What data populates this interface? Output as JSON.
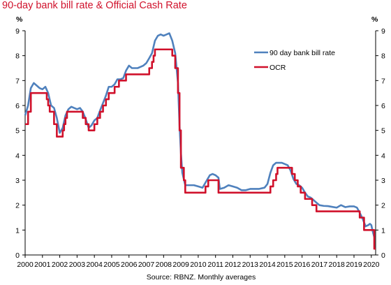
{
  "title": "90-day bank bill rate & Official Cash Rate",
  "chart_data": {
    "type": "line",
    "title": "90-day bank bill rate & Official Cash Rate",
    "y_unit_left": "%",
    "y_unit_right": "%",
    "ylim": [
      0,
      9
    ],
    "y_ticks": [
      "0",
      "1",
      "2",
      "3",
      "4",
      "5",
      "6",
      "7",
      "8",
      "9"
    ],
    "xlim": [
      2000,
      2020.25
    ],
    "x_ticks": [
      "2000",
      "2001",
      "2002",
      "2003",
      "2004",
      "2005",
      "2006",
      "2007",
      "2008",
      "2009",
      "2010",
      "2011",
      "2012",
      "2013",
      "2014",
      "2015",
      "2016",
      "2017",
      "2018",
      "2019",
      "2020"
    ],
    "grid": false,
    "legend_position": "top-right",
    "source": "Source: RBNZ. Monthly averages",
    "series": [
      {
        "name": "90 day bank bill rate",
        "color": "#4f81bd",
        "points": [
          [
            2000.0,
            5.6
          ],
          [
            2000.17,
            6.0
          ],
          [
            2000.33,
            6.7
          ],
          [
            2000.5,
            6.9
          ],
          [
            2000.67,
            6.8
          ],
          [
            2000.83,
            6.7
          ],
          [
            2001.0,
            6.65
          ],
          [
            2001.17,
            6.75
          ],
          [
            2001.33,
            6.5
          ],
          [
            2001.5,
            6.0
          ],
          [
            2001.67,
            5.9
          ],
          [
            2001.83,
            5.5
          ],
          [
            2002.0,
            4.9
          ],
          [
            2002.17,
            5.1
          ],
          [
            2002.33,
            5.6
          ],
          [
            2002.5,
            5.85
          ],
          [
            2002.67,
            5.95
          ],
          [
            2002.83,
            5.9
          ],
          [
            2003.0,
            5.85
          ],
          [
            2003.17,
            5.9
          ],
          [
            2003.33,
            5.75
          ],
          [
            2003.5,
            5.45
          ],
          [
            2003.67,
            5.1
          ],
          [
            2003.83,
            5.2
          ],
          [
            2004.0,
            5.4
          ],
          [
            2004.17,
            5.5
          ],
          [
            2004.33,
            5.8
          ],
          [
            2004.5,
            6.1
          ],
          [
            2004.67,
            6.4
          ],
          [
            2004.83,
            6.75
          ],
          [
            2005.0,
            6.75
          ],
          [
            2005.17,
            6.85
          ],
          [
            2005.33,
            7.05
          ],
          [
            2005.5,
            7.05
          ],
          [
            2005.67,
            7.1
          ],
          [
            2005.83,
            7.4
          ],
          [
            2006.0,
            7.6
          ],
          [
            2006.17,
            7.5
          ],
          [
            2006.33,
            7.5
          ],
          [
            2006.5,
            7.5
          ],
          [
            2006.67,
            7.55
          ],
          [
            2006.83,
            7.6
          ],
          [
            2007.0,
            7.7
          ],
          [
            2007.17,
            7.9
          ],
          [
            2007.33,
            8.1
          ],
          [
            2007.5,
            8.6
          ],
          [
            2007.67,
            8.8
          ],
          [
            2007.83,
            8.85
          ],
          [
            2008.0,
            8.8
          ],
          [
            2008.17,
            8.85
          ],
          [
            2008.33,
            8.9
          ],
          [
            2008.5,
            8.6
          ],
          [
            2008.67,
            8.1
          ],
          [
            2008.83,
            6.9
          ],
          [
            2008.92,
            5.2
          ],
          [
            2009.0,
            4.1
          ],
          [
            2009.08,
            3.3
          ],
          [
            2009.25,
            2.8
          ],
          [
            2009.5,
            2.8
          ],
          [
            2009.75,
            2.8
          ],
          [
            2010.0,
            2.75
          ],
          [
            2010.25,
            2.7
          ],
          [
            2010.5,
            3.0
          ],
          [
            2010.67,
            3.2
          ],
          [
            2010.83,
            3.25
          ],
          [
            2011.0,
            3.2
          ],
          [
            2011.17,
            3.1
          ],
          [
            2011.25,
            2.65
          ],
          [
            2011.5,
            2.7
          ],
          [
            2011.75,
            2.8
          ],
          [
            2012.0,
            2.75
          ],
          [
            2012.25,
            2.7
          ],
          [
            2012.5,
            2.6
          ],
          [
            2012.75,
            2.6
          ],
          [
            2013.0,
            2.65
          ],
          [
            2013.5,
            2.65
          ],
          [
            2013.83,
            2.7
          ],
          [
            2014.0,
            2.85
          ],
          [
            2014.17,
            3.3
          ],
          [
            2014.33,
            3.6
          ],
          [
            2014.5,
            3.7
          ],
          [
            2014.67,
            3.7
          ],
          [
            2014.83,
            3.7
          ],
          [
            2015.0,
            3.65
          ],
          [
            2015.17,
            3.6
          ],
          [
            2015.33,
            3.4
          ],
          [
            2015.5,
            3.05
          ],
          [
            2015.67,
            2.85
          ],
          [
            2015.83,
            2.8
          ],
          [
            2016.0,
            2.7
          ],
          [
            2016.17,
            2.5
          ],
          [
            2016.33,
            2.35
          ],
          [
            2016.5,
            2.3
          ],
          [
            2016.67,
            2.2
          ],
          [
            2016.83,
            2.1
          ],
          [
            2017.0,
            2.0
          ],
          [
            2017.25,
            1.97
          ],
          [
            2017.5,
            1.96
          ],
          [
            2017.75,
            1.93
          ],
          [
            2018.0,
            1.9
          ],
          [
            2018.25,
            2.0
          ],
          [
            2018.5,
            1.92
          ],
          [
            2018.75,
            1.95
          ],
          [
            2019.0,
            1.95
          ],
          [
            2019.17,
            1.9
          ],
          [
            2019.33,
            1.7
          ],
          [
            2019.5,
            1.45
          ],
          [
            2019.67,
            1.15
          ],
          [
            2019.83,
            1.2
          ],
          [
            2019.92,
            1.25
          ],
          [
            2020.0,
            1.2
          ],
          [
            2020.08,
            0.95
          ],
          [
            2020.17,
            0.72
          ]
        ]
      },
      {
        "name": "OCR",
        "color": "#d0112b",
        "points": [
          [
            2000.0,
            5.25
          ],
          [
            2000.17,
            5.25
          ],
          [
            2000.17,
            5.75
          ],
          [
            2000.33,
            5.75
          ],
          [
            2000.33,
            6.5
          ],
          [
            2001.25,
            6.5
          ],
          [
            2001.25,
            6.25
          ],
          [
            2001.33,
            6.25
          ],
          [
            2001.33,
            6.0
          ],
          [
            2001.42,
            6.0
          ],
          [
            2001.42,
            5.75
          ],
          [
            2001.67,
            5.75
          ],
          [
            2001.67,
            5.25
          ],
          [
            2001.83,
            5.25
          ],
          [
            2001.83,
            4.75
          ],
          [
            2002.17,
            4.75
          ],
          [
            2002.17,
            5.0
          ],
          [
            2002.25,
            5.0
          ],
          [
            2002.25,
            5.25
          ],
          [
            2002.33,
            5.25
          ],
          [
            2002.33,
            5.5
          ],
          [
            2002.42,
            5.5
          ],
          [
            2002.42,
            5.75
          ],
          [
            2003.33,
            5.75
          ],
          [
            2003.33,
            5.5
          ],
          [
            2003.5,
            5.5
          ],
          [
            2003.5,
            5.25
          ],
          [
            2003.67,
            5.25
          ],
          [
            2003.67,
            5.0
          ],
          [
            2004.0,
            5.0
          ],
          [
            2004.0,
            5.25
          ],
          [
            2004.17,
            5.25
          ],
          [
            2004.17,
            5.5
          ],
          [
            2004.33,
            5.5
          ],
          [
            2004.33,
            5.75
          ],
          [
            2004.5,
            5.75
          ],
          [
            2004.5,
            6.0
          ],
          [
            2004.67,
            6.0
          ],
          [
            2004.67,
            6.25
          ],
          [
            2004.83,
            6.25
          ],
          [
            2004.83,
            6.5
          ],
          [
            2005.17,
            6.5
          ],
          [
            2005.17,
            6.75
          ],
          [
            2005.42,
            6.75
          ],
          [
            2005.42,
            7.0
          ],
          [
            2005.83,
            7.0
          ],
          [
            2005.83,
            7.25
          ],
          [
            2007.17,
            7.25
          ],
          [
            2007.17,
            7.5
          ],
          [
            2007.33,
            7.5
          ],
          [
            2007.33,
            7.75
          ],
          [
            2007.42,
            7.75
          ],
          [
            2007.42,
            8.0
          ],
          [
            2007.5,
            8.0
          ],
          [
            2007.5,
            8.25
          ],
          [
            2008.5,
            8.25
          ],
          [
            2008.5,
            8.0
          ],
          [
            2008.67,
            8.0
          ],
          [
            2008.67,
            7.5
          ],
          [
            2008.83,
            7.5
          ],
          [
            2008.83,
            6.5
          ],
          [
            2008.92,
            6.5
          ],
          [
            2008.92,
            5.0
          ],
          [
            2009.0,
            5.0
          ],
          [
            2009.0,
            3.5
          ],
          [
            2009.17,
            3.5
          ],
          [
            2009.17,
            3.0
          ],
          [
            2009.25,
            3.0
          ],
          [
            2009.25,
            2.5
          ],
          [
            2010.42,
            2.5
          ],
          [
            2010.42,
            2.75
          ],
          [
            2010.58,
            2.75
          ],
          [
            2010.58,
            3.0
          ],
          [
            2011.17,
            3.0
          ],
          [
            2011.17,
            2.5
          ],
          [
            2014.17,
            2.5
          ],
          [
            2014.17,
            2.75
          ],
          [
            2014.33,
            2.75
          ],
          [
            2014.33,
            3.0
          ],
          [
            2014.5,
            3.0
          ],
          [
            2014.5,
            3.25
          ],
          [
            2014.58,
            3.25
          ],
          [
            2014.58,
            3.5
          ],
          [
            2015.42,
            3.5
          ],
          [
            2015.42,
            3.25
          ],
          [
            2015.58,
            3.25
          ],
          [
            2015.58,
            3.0
          ],
          [
            2015.75,
            3.0
          ],
          [
            2015.75,
            2.75
          ],
          [
            2015.92,
            2.75
          ],
          [
            2015.92,
            2.5
          ],
          [
            2016.17,
            2.5
          ],
          [
            2016.17,
            2.25
          ],
          [
            2016.58,
            2.25
          ],
          [
            2016.58,
            2.0
          ],
          [
            2016.83,
            2.0
          ],
          [
            2016.83,
            1.75
          ],
          [
            2019.33,
            1.75
          ],
          [
            2019.33,
            1.5
          ],
          [
            2019.58,
            1.5
          ],
          [
            2019.58,
            1.0
          ],
          [
            2020.17,
            1.0
          ],
          [
            2020.17,
            0.25
          ],
          [
            2020.25,
            0.25
          ]
        ]
      }
    ]
  }
}
